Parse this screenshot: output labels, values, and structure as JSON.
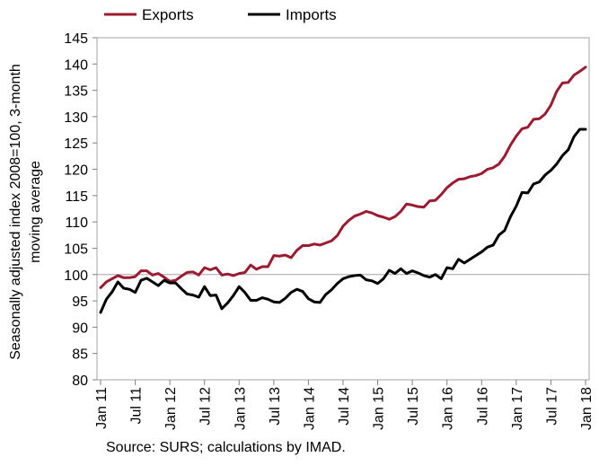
{
  "chart_data": {
    "type": "line",
    "ylabel_line1": "Seasonally adjusted index 2008=100, 3-month",
    "ylabel_line2": "moving average",
    "ylim": [
      80,
      145
    ],
    "yticks": [
      80,
      85,
      90,
      95,
      100,
      105,
      110,
      115,
      120,
      125,
      130,
      135,
      140,
      145
    ],
    "grid": "horizontal at 100",
    "legend": "top-left",
    "x_start": "Jan 11",
    "x_labels": [
      "Jan 11",
      "Jul 11",
      "Jan 12",
      "Jul 12",
      "Jan 13",
      "Jul 13",
      "Jan 14",
      "Jul 14",
      "Jan 15",
      "Jul 15",
      "Jan 16",
      "Jul 16",
      "Jan 17",
      "Jul 17",
      "Jan 18"
    ],
    "series": [
      {
        "name": "Exports",
        "color": "#9b1b30",
        "values": [
          97.5,
          98.6,
          99.2,
          99.8,
          99.4,
          99.4,
          99.6,
          100.7,
          100.7,
          99.9,
          100.2,
          99.5,
          98.7,
          98.9,
          99.7,
          100.4,
          100.5,
          99.9,
          101.3,
          100.9,
          101.3,
          99.9,
          100.1,
          99.8,
          100.2,
          100.4,
          101.8,
          101.0,
          101.5,
          101.5,
          103.6,
          103.5,
          103.7,
          103.2,
          104.6,
          105.5,
          105.5,
          105.8,
          105.6,
          106.0,
          106.4,
          107.4,
          109.2,
          110.3,
          111.1,
          111.5,
          112.0,
          111.7,
          111.2,
          110.9,
          110.5,
          111.0,
          112.0,
          113.4,
          113.2,
          112.9,
          112.8,
          114.0,
          114.1,
          115.2,
          116.5,
          117.4,
          118.1,
          118.2,
          118.6,
          118.8,
          119.2,
          120.0,
          120.3,
          121.0,
          122.5,
          124.6,
          126.3,
          127.7,
          128.0,
          129.5,
          129.6,
          130.5,
          132.2,
          134.8,
          136.4,
          136.5,
          137.9,
          138.6,
          139.4
        ]
      },
      {
        "name": "Imports",
        "color": "#000000",
        "values": [
          92.8,
          95.3,
          96.7,
          98.6,
          97.4,
          97.2,
          96.6,
          98.9,
          99.3,
          98.6,
          97.9,
          98.9,
          98.4,
          98.4,
          97.3,
          96.3,
          96.1,
          95.7,
          97.7,
          96.0,
          96.1,
          93.5,
          94.6,
          96.0,
          97.7,
          96.6,
          95.1,
          95.1,
          95.6,
          95.3,
          94.8,
          94.7,
          95.5,
          96.6,
          97.2,
          96.8,
          95.4,
          94.8,
          94.7,
          96.2,
          97.1,
          98.3,
          99.2,
          99.6,
          99.8,
          99.9,
          99.0,
          98.8,
          98.3,
          99.2,
          100.8,
          100.2,
          101.1,
          100.2,
          100.7,
          100.3,
          99.8,
          99.5,
          100.0,
          99.2,
          101.3,
          101.1,
          102.9,
          102.2,
          102.9,
          103.6,
          104.3,
          105.2,
          105.6,
          107.5,
          108.4,
          111.0,
          113.0,
          115.6,
          115.5,
          117.2,
          117.6,
          118.9,
          119.8,
          121.0,
          122.6,
          123.7,
          126.2,
          127.6,
          127.6
        ]
      }
    ]
  },
  "source": "Source: SURS; calculations by IMAD."
}
